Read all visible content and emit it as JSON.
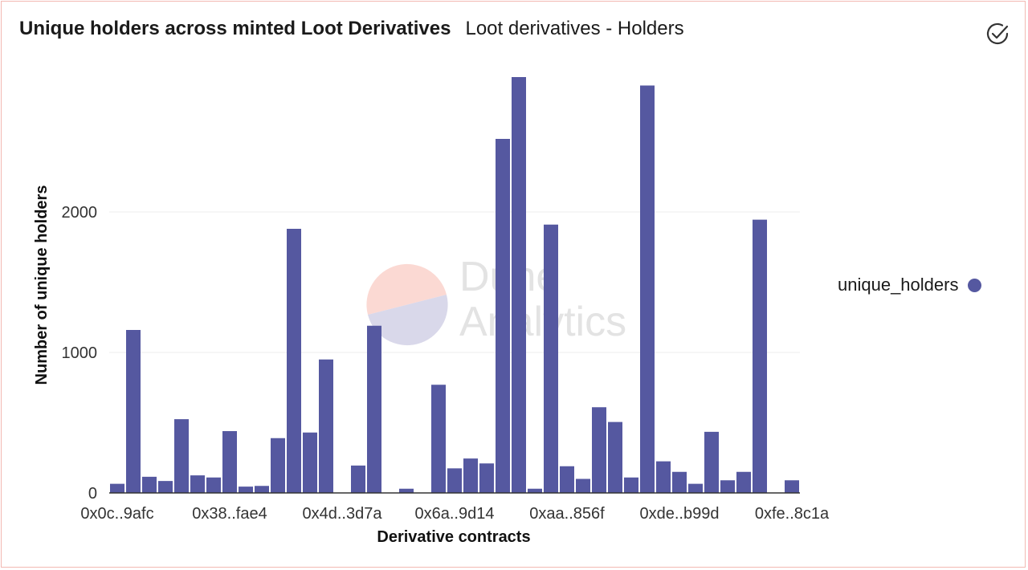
{
  "header": {
    "title": "Unique holders across minted Loot Derivatives",
    "subtitle": "Loot derivatives - Holders"
  },
  "icons": {
    "status": "check-circle-icon"
  },
  "watermark": {
    "line1": "Dune",
    "line2": "Analytics"
  },
  "colors": {
    "bar": "#5558a0",
    "grid": "#ececec",
    "border": "#f2b8b2"
  },
  "chart_data": {
    "type": "bar",
    "xlabel": "Derivative contracts",
    "ylabel": "Number of unique holders",
    "ylim": [
      0,
      3000
    ],
    "yticks": [
      0,
      1000,
      2000
    ],
    "grid": true,
    "legend_position": "right",
    "x_tick_labels": [
      {
        "index": 0,
        "label": "0x0c..9afc"
      },
      {
        "index": 7,
        "label": "0x38..fae4"
      },
      {
        "index": 14,
        "label": "0x4d..3d7a"
      },
      {
        "index": 21,
        "label": "0x6a..9d14"
      },
      {
        "index": 28,
        "label": "0xaa..856f"
      },
      {
        "index": 35,
        "label": "0xde..b99d"
      },
      {
        "index": 42,
        "label": "0xfe..8c1a"
      }
    ],
    "series": [
      {
        "name": "unique_holders",
        "values": [
          65,
          1160,
          115,
          85,
          525,
          125,
          110,
          440,
          45,
          50,
          390,
          1880,
          430,
          950,
          0,
          195,
          1190,
          0,
          30,
          0,
          770,
          175,
          245,
          210,
          2520,
          2960,
          30,
          1910,
          190,
          100,
          610,
          505,
          110,
          2900,
          225,
          150,
          65,
          435,
          90,
          150,
          1945,
          0,
          90
        ]
      }
    ]
  }
}
